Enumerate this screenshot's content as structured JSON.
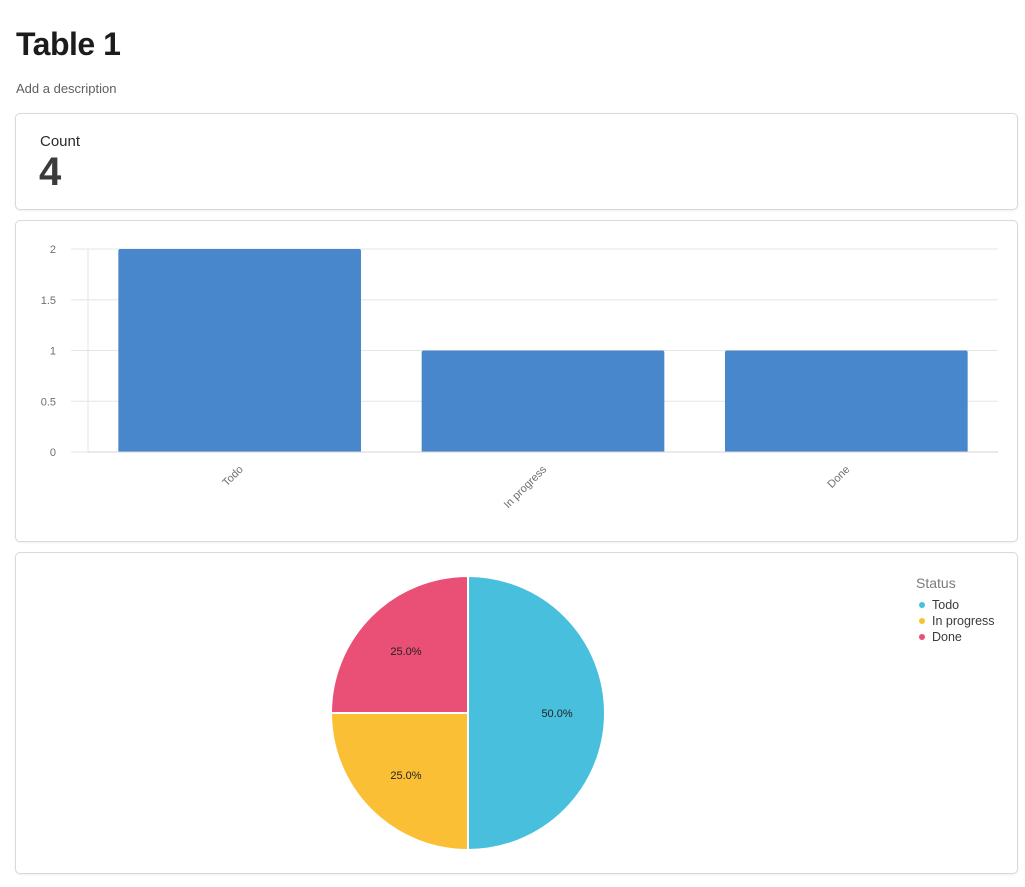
{
  "page": {
    "title": "Table 1",
    "description": "Add a description"
  },
  "count_card": {
    "label": "Count",
    "value": "4"
  },
  "colors": {
    "bar": "#4887cb",
    "todo": "#48bfdd",
    "in_progress": "#fbbf35",
    "done": "#ea4f75"
  },
  "chart_data": [
    {
      "type": "bar",
      "categories": [
        "Todo",
        "In progress",
        "Done"
      ],
      "values": [
        2,
        1,
        1
      ],
      "ylim": [
        0,
        2
      ],
      "yticks": [
        "0",
        "0.5",
        "1",
        "1.5",
        "2"
      ],
      "title": "",
      "xlabel": "",
      "ylabel": "",
      "grid": true
    },
    {
      "type": "pie",
      "legend_title": "Status",
      "legend_position": "top-right",
      "slices": [
        {
          "label": "Todo",
          "value": 2,
          "percent_label": "50.0%"
        },
        {
          "label": "In progress",
          "value": 1,
          "percent_label": "25.0%"
        },
        {
          "label": "Done",
          "value": 1,
          "percent_label": "25.0%"
        }
      ]
    }
  ]
}
